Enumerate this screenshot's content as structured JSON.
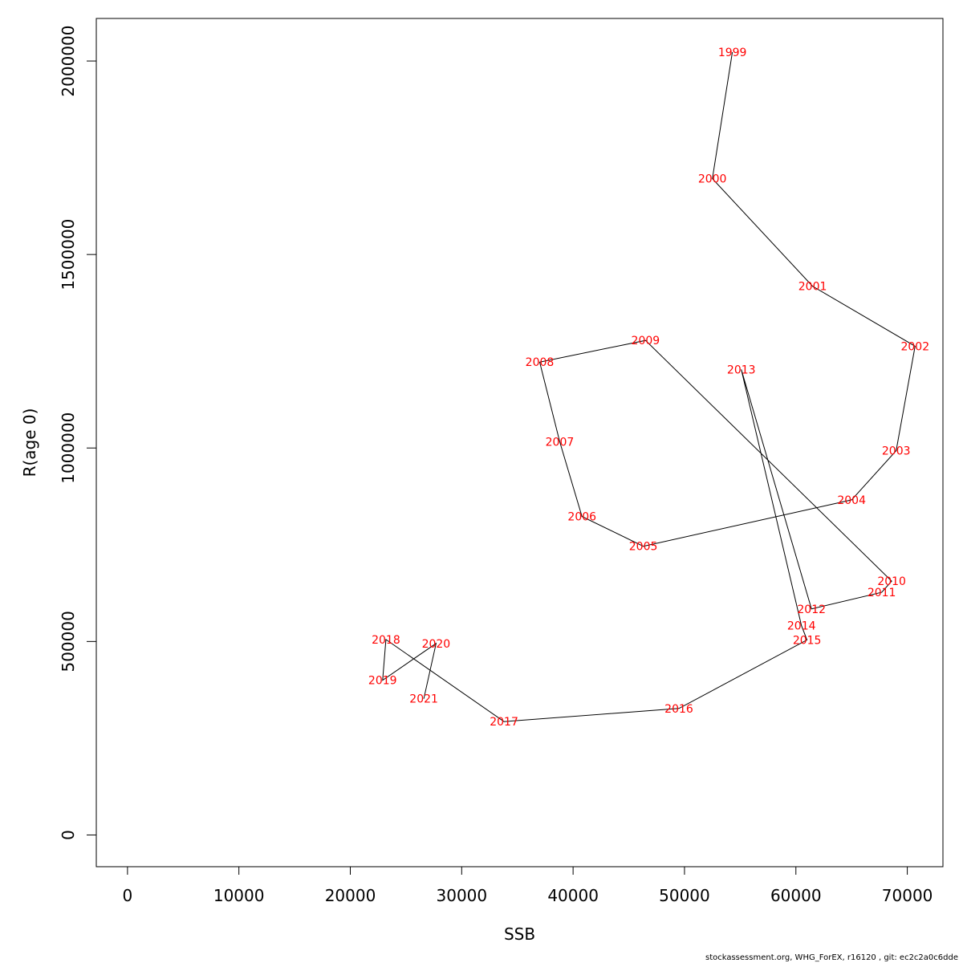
{
  "chart_data": {
    "type": "line",
    "xlabel": "SSB",
    "ylabel": "R(age 0)",
    "xlim": [
      -2800,
      73200
    ],
    "ylim": [
      -82000,
      2110000
    ],
    "x_ticks": [
      0,
      10000,
      20000,
      30000,
      40000,
      50000,
      60000,
      70000
    ],
    "y_ticks": [
      0,
      500000,
      1000000,
      1500000,
      2000000
    ],
    "line_color": "#000000",
    "label_color": "#ff0000",
    "grid": false,
    "box": true,
    "points": [
      {
        "label": "1999",
        "x": 54300,
        "y": 2023000
      },
      {
        "label": "2000",
        "x": 52500,
        "y": 1696000
      },
      {
        "label": "2001",
        "x": 61500,
        "y": 1418000
      },
      {
        "label": "2002",
        "x": 70700,
        "y": 1263000
      },
      {
        "label": "2003",
        "x": 69000,
        "y": 993000
      },
      {
        "label": "2004",
        "x": 65000,
        "y": 866000
      },
      {
        "label": "2005",
        "x": 46300,
        "y": 746000
      },
      {
        "label": "2006",
        "x": 40800,
        "y": 823000
      },
      {
        "label": "2007",
        "x": 38800,
        "y": 1016000
      },
      {
        "label": "2008",
        "x": 37000,
        "y": 1222000
      },
      {
        "label": "2009",
        "x": 46500,
        "y": 1278000
      },
      {
        "label": "2010",
        "x": 68600,
        "y": 656000
      },
      {
        "label": "2011",
        "x": 67700,
        "y": 627000
      },
      {
        "label": "2012",
        "x": 61400,
        "y": 584000
      },
      {
        "label": "2013",
        "x": 55100,
        "y": 1203000
      },
      {
        "label": "2014",
        "x": 60500,
        "y": 541000
      },
      {
        "label": "2015",
        "x": 61000,
        "y": 504000
      },
      {
        "label": "2016",
        "x": 49500,
        "y": 327000
      },
      {
        "label": "2017",
        "x": 33800,
        "y": 293000
      },
      {
        "label": "2018",
        "x": 23200,
        "y": 505000
      },
      {
        "label": "2019",
        "x": 22900,
        "y": 400000
      },
      {
        "label": "2020",
        "x": 27700,
        "y": 495000
      },
      {
        "label": "2021",
        "x": 26600,
        "y": 352000
      }
    ]
  },
  "footer": {
    "note": "stockassessment.org, WHG_ForEX, r16120 , git: ec2c2a0c6dde"
  }
}
